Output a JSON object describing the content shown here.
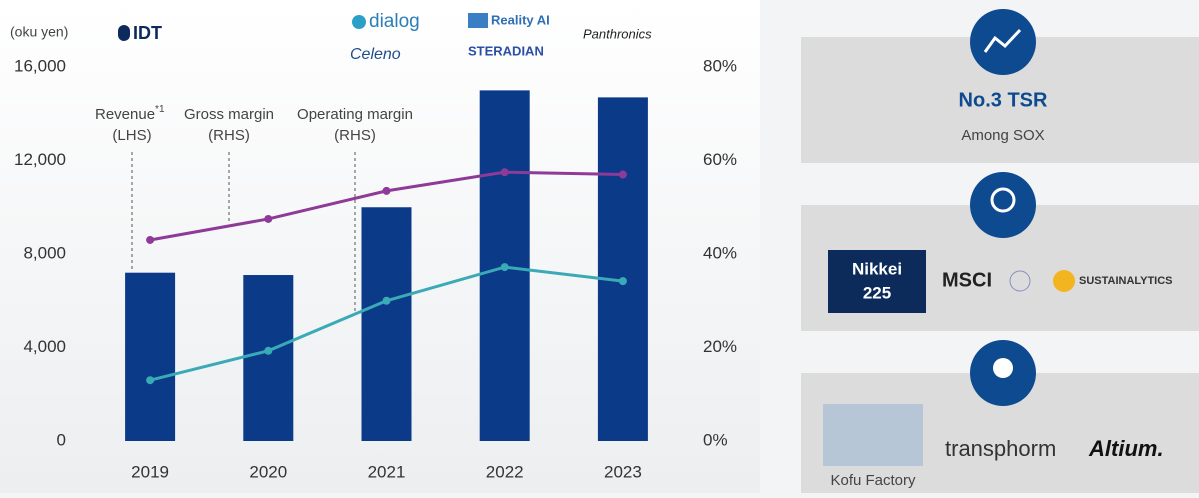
{
  "chart_data": {
    "type": "bar",
    "unit_label": "(oku yen)",
    "categories": [
      "2019",
      "2020",
      "2021",
      "2022",
      "2023"
    ],
    "series": [
      {
        "name": "Revenue",
        "footnote_mark": "*1",
        "axis_note": "(LHS)",
        "type": "bar",
        "color": "#0b3a88",
        "values": [
          7200,
          7100,
          10000,
          15000,
          14700
        ]
      },
      {
        "name": "Gross margin",
        "axis_note": "(RHS)",
        "type": "line",
        "axis": "y2",
        "color": "#8e3a98",
        "values": [
          43,
          47.5,
          53.5,
          57.5,
          57
        ]
      },
      {
        "name": "Operating margin",
        "axis_note": "(RHS)",
        "type": "line",
        "axis": "y2",
        "color": "#3aaab6",
        "values": [
          13,
          19.3,
          30,
          37.2,
          34.2
        ]
      }
    ],
    "ylim": [
      0,
      16000
    ],
    "yticks": [
      0,
      {
        "value": 4000,
        "label": "4,000"
      },
      {
        "value": 8000,
        "label": "8,000"
      },
      {
        "value": 12000,
        "label": "12,000"
      },
      {
        "value": 16000,
        "label": "16,000"
      }
    ],
    "y2lim": [
      0,
      80
    ],
    "y2ticks": [
      {
        "value": 0,
        "label": "0%"
      },
      {
        "value": 20,
        "label": "20%"
      },
      {
        "value": 40,
        "label": "40%"
      },
      {
        "value": 60,
        "label": "60%"
      },
      {
        "value": 80,
        "label": "80%"
      }
    ],
    "grid": false
  },
  "logos": [
    "IDT",
    "dialog",
    "Celeno",
    "Reality AI",
    "STERADIAN",
    "Panthronics"
  ],
  "panels": [
    {
      "title": "No.3 TSR",
      "subtitle": "Among SOX"
    },
    {
      "items": [
        "Nikkei",
        "225",
        "MSCI",
        "SUSTAINALYTICS"
      ]
    },
    {
      "items": [
        "Kofu Factory",
        "transphorm",
        "Altium."
      ]
    }
  ]
}
